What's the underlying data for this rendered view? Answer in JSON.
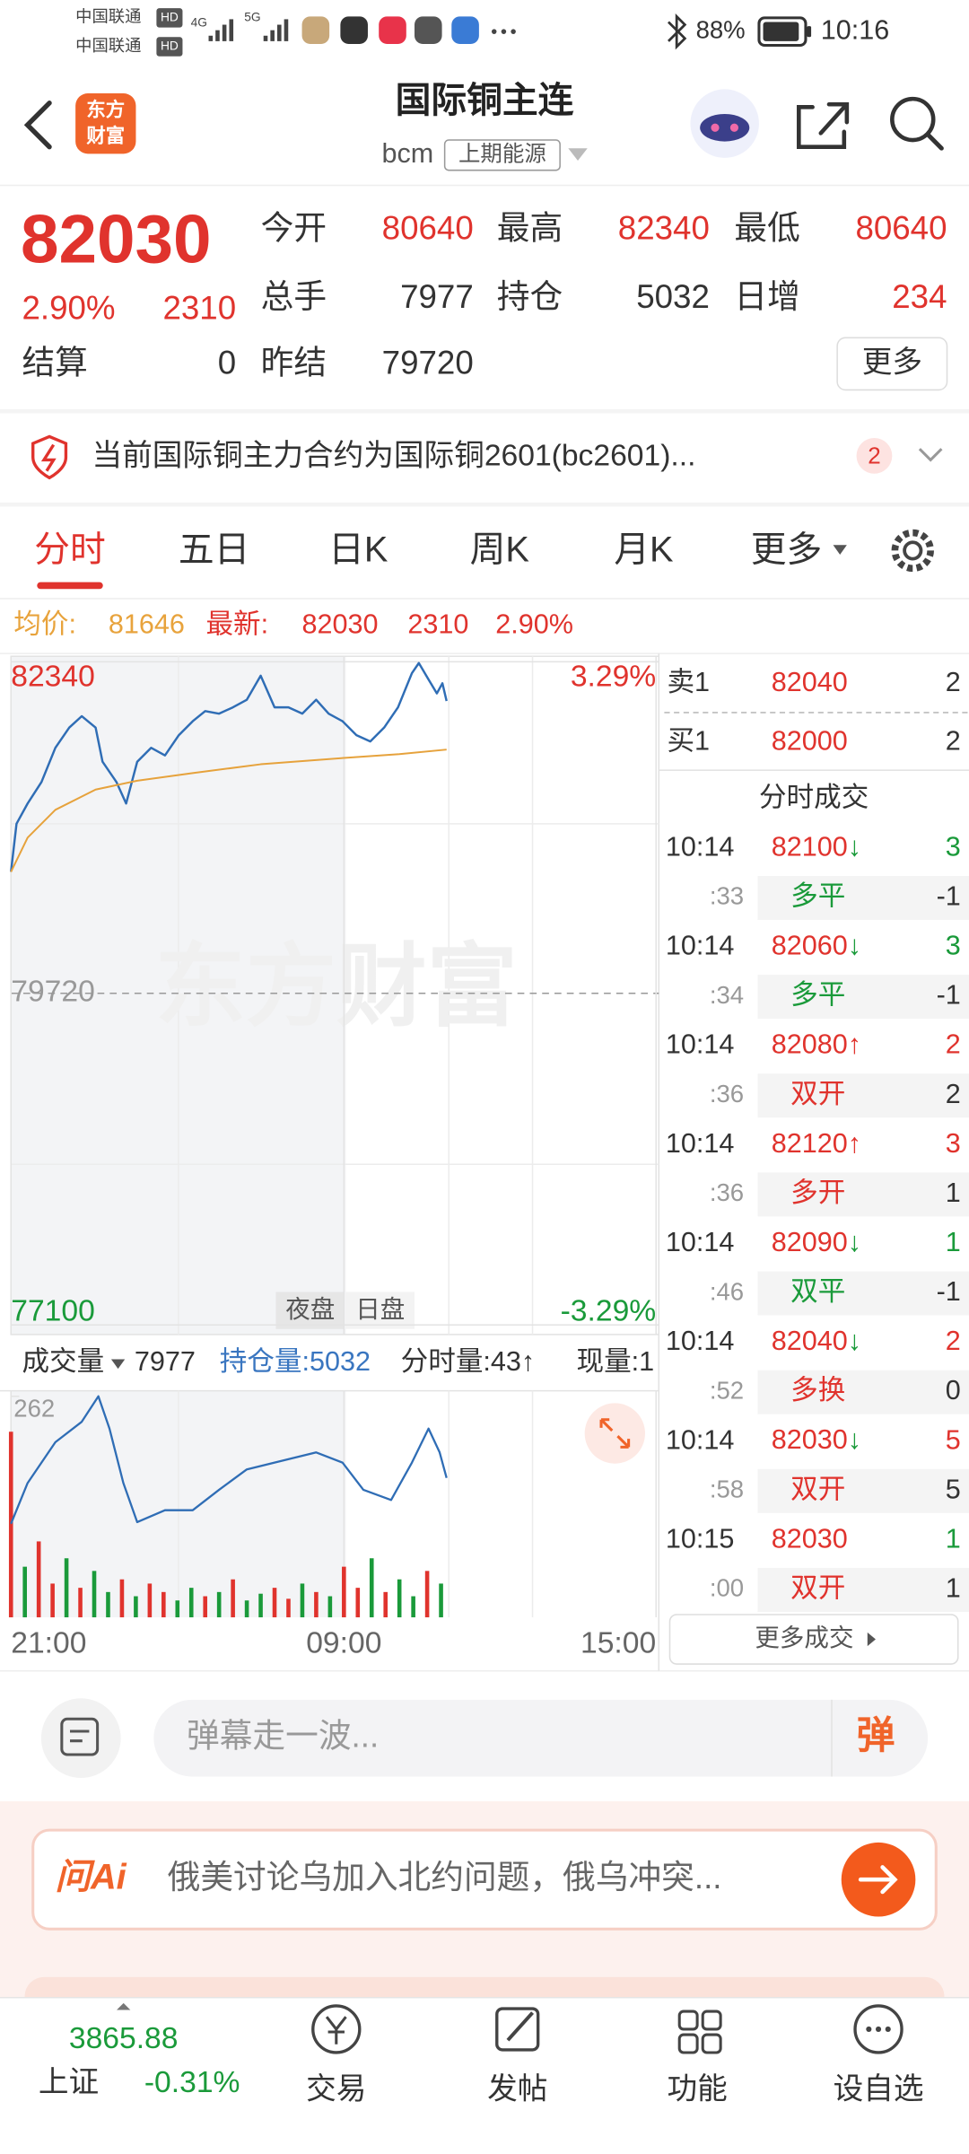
{
  "status_bar": {
    "carriers": [
      "中国联通",
      "中国联通"
    ],
    "carrier_badges": [
      "HD",
      "HD"
    ],
    "network": [
      "4G",
      "5G"
    ],
    "battery": "88%",
    "time": "10:16"
  },
  "header": {
    "logo": [
      "东方",
      "财富"
    ],
    "title": "国际铜主连",
    "code": "bcm",
    "exchange": "上期能源"
  },
  "quote": {
    "price": "82030",
    "change_pct": "2.90%",
    "change": "2310",
    "settle": {
      "label": "结算",
      "value": "0"
    },
    "fields": [
      {
        "label": "今开",
        "value": "80640",
        "color": "#e0332d"
      },
      {
        "label": "最高",
        "value": "82340",
        "color": "#e0332d"
      },
      {
        "label": "最低",
        "value": "80640",
        "color": "#e0332d"
      },
      {
        "label": "总手",
        "value": "7977",
        "color": "#333333"
      },
      {
        "label": "持仓",
        "value": "5032",
        "color": "#333333"
      },
      {
        "label": "日增",
        "value": "234",
        "color": "#e0332d"
      },
      {
        "label": "昨结",
        "value": "79720",
        "color": "#333333"
      }
    ],
    "more": "更多"
  },
  "notice": {
    "text": "当前国际铜主力合约为国际铜2601(bc2601)...",
    "count": "2"
  },
  "tabs": {
    "items": [
      "分时",
      "五日",
      "日K",
      "周K",
      "月K",
      "更多"
    ],
    "active": 0
  },
  "info": {
    "avg_label": "均价:",
    "avg": "81646",
    "last_label": "最新:",
    "last": "82030",
    "change": "2310",
    "change_pct": "2.90%"
  },
  "chart_labels": {
    "watermark": "东方财富",
    "night": "夜盘",
    "day": "日盘"
  },
  "volume_bar": {
    "label": "成交量",
    "volume": "7977",
    "holding": "持仓量:5032",
    "tick_volume": "分时量:43↑",
    "current": "现量:1"
  },
  "order_book": [
    {
      "label": "卖1",
      "price": "82040",
      "volume": "2"
    },
    {
      "label": "买1",
      "price": "82000",
      "volume": "2"
    }
  ],
  "trades_title": "分时成交",
  "trades": [
    {
      "time": "10:14",
      "price": "82100",
      "arrow": "↓",
      "arrow_color": "#1a9a3a",
      "volume": "3",
      "volume_color": "#1a9a3a",
      "second": ":33",
      "kind": "多平",
      "kind_color": "#1a9a3a",
      "oi": "-1"
    },
    {
      "time": "10:14",
      "price": "82060",
      "arrow": "↓",
      "arrow_color": "#1a9a3a",
      "volume": "3",
      "volume_color": "#1a9a3a",
      "second": ":34",
      "kind": "多平",
      "kind_color": "#1a9a3a",
      "oi": "-1"
    },
    {
      "time": "10:14",
      "price": "82080",
      "arrow": "↑",
      "arrow_color": "#e0332d",
      "volume": "2",
      "volume_color": "#e0332d",
      "second": ":36",
      "kind": "双开",
      "kind_color": "#e0332d",
      "oi": "2"
    },
    {
      "time": "10:14",
      "price": "82120",
      "arrow": "↑",
      "arrow_color": "#e0332d",
      "volume": "3",
      "volume_color": "#e0332d",
      "second": ":36",
      "kind": "多开",
      "kind_color": "#e0332d",
      "oi": "1"
    },
    {
      "time": "10:14",
      "price": "82090",
      "arrow": "↓",
      "arrow_color": "#1a9a3a",
      "volume": "1",
      "volume_color": "#1a9a3a",
      "second": ":46",
      "kind": "双平",
      "kind_color": "#1a9a3a",
      "oi": "-1"
    },
    {
      "time": "10:14",
      "price": "82040",
      "arrow": "↓",
      "arrow_color": "#1a9a3a",
      "volume": "2",
      "volume_color": "#e0332d",
      "second": ":52",
      "kind": "多换",
      "kind_color": "#e0332d",
      "oi": "0"
    },
    {
      "time": "10:14",
      "price": "82030",
      "arrow": "↓",
      "arrow_color": "#1a9a3a",
      "volume": "5",
      "volume_color": "#e0332d",
      "second": ":58",
      "kind": "双开",
      "kind_color": "#e0332d",
      "oi": "5"
    },
    {
      "time": "10:15",
      "price": "82030",
      "volume": "1",
      "volume_color": "#1a9a3a",
      "second": ":00",
      "kind": "双开",
      "kind_color": "#e0332d",
      "oi": "1"
    }
  ],
  "more_trades": "更多成交",
  "comment_bar": {
    "placeholder": "弹幕走一波...",
    "button": "弹"
  },
  "ai": {
    "logo": "问Ai",
    "text": "俄美讨论乌加入北约问题，俄乌冲突..."
  },
  "bottom_nav": {
    "index_value": "3865.88",
    "index_name": "上证",
    "index_change": "-0.31%",
    "items": [
      "交易",
      "发帖",
      "功能",
      "设自选"
    ]
  },
  "chart_data": [
    {
      "type": "line",
      "xlim": [
        0,
        465
      ],
      "xticks": [
        {
          "value": 0,
          "label": "21:00"
        },
        {
          "value": 240,
          "label": "09:00"
        },
        {
          "value": 465,
          "label": "15:00"
        }
      ],
      "ylim": [
        77100,
        82340
      ],
      "yticks": [
        82340,
        79720,
        77100
      ],
      "y2lim": [
        -3.29,
        3.29
      ],
      "y2ticks": [
        {
          "value": 3.29,
          "label": "3.29%"
        },
        {
          "value": -3.29,
          "label": "-3.29%"
        }
      ],
      "up_color": "#e0332d",
      "down_color": "#1a9a3a",
      "flat_color": "#999999",
      "series": [
        {
          "color": "#2f6db5",
          "x": [
            0,
            4,
            12,
            22,
            32,
            42,
            51,
            61,
            66,
            76,
            83,
            91,
            101,
            111,
            121,
            131,
            140,
            150,
            160,
            170,
            180,
            190,
            200,
            210,
            220,
            229,
            239,
            249,
            259,
            269,
            279,
            289,
            294,
            301,
            307,
            311,
            314
          ],
          "values": [
            80680,
            81060,
            81220,
            81390,
            81660,
            81820,
            81910,
            81820,
            81550,
            81390,
            81220,
            81550,
            81660,
            81600,
            81760,
            81870,
            81950,
            81930,
            81980,
            82040,
            82230,
            81980,
            81980,
            81930,
            82040,
            81930,
            81870,
            81760,
            81710,
            81820,
            81980,
            82250,
            82330,
            82200,
            82090,
            82170,
            82030
          ]
        },
        {
          "color": "#e6a23c",
          "x": [
            0,
            12,
            32,
            61,
            91,
            131,
            180,
            240,
            280,
            314
          ],
          "values": [
            80680,
            80950,
            81170,
            81330,
            81400,
            81460,
            81530,
            81580,
            81610,
            81646
          ]
        }
      ]
    },
    {
      "type": "bar",
      "xlim": [
        0,
        465
      ],
      "ylim": [
        0,
        262
      ],
      "yticks": [
        262
      ],
      "up_color": "#e0332d",
      "down_color": "#1a9a3a",
      "x": [
        0,
        10,
        20,
        30,
        40,
        50,
        60,
        70,
        80,
        90,
        100,
        110,
        120,
        130,
        140,
        150,
        160,
        170,
        180,
        190,
        200,
        210,
        220,
        230,
        240,
        250,
        260,
        270,
        280,
        290,
        300,
        310
      ],
      "values": [
        220,
        60,
        90,
        40,
        70,
        35,
        55,
        30,
        45,
        25,
        40,
        30,
        20,
        35,
        25,
        30,
        45,
        20,
        28,
        35,
        22,
        40,
        30,
        25,
        60,
        35,
        70,
        30,
        45,
        25,
        55,
        40
      ],
      "up": [
        1,
        0,
        1,
        1,
        0,
        1,
        0,
        0,
        1,
        0,
        1,
        1,
        0,
        0,
        1,
        0,
        1,
        0,
        0,
        1,
        1,
        0,
        1,
        0,
        1,
        1,
        0,
        1,
        0,
        0,
        1,
        0
      ],
      "line": {
        "color": "#2f6db5",
        "ylim": [
          4950,
          5080
        ],
        "x": [
          0,
          12,
          32,
          51,
          63,
          71,
          81,
          91,
          111,
          131,
          150,
          170,
          190,
          220,
          239,
          254,
          274,
          289,
          301,
          309,
          314
        ],
        "values": [
          5005,
          5029,
          5053,
          5065,
          5080,
          5061,
          5029,
          5006,
          5013,
          5013,
          5025,
          5037,
          5041,
          5047,
          5041,
          5025,
          5019,
          5041,
          5061,
          5047,
          5032
        ]
      }
    }
  ]
}
